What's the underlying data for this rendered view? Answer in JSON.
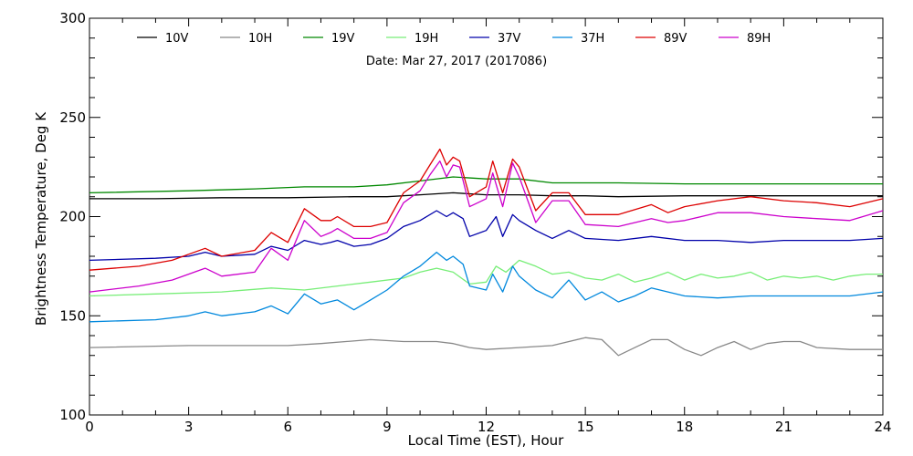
{
  "chart_data": {
    "type": "line",
    "date_text": "Date: Mar 27, 2017 (2017086)",
    "xlabel": "Local Time (EST), Hour",
    "ylabel": "Brightness Temperature, Deg K",
    "xlim": [
      0,
      24
    ],
    "ylim": [
      100,
      300
    ],
    "xticks": [
      0,
      3,
      6,
      9,
      12,
      15,
      18,
      21,
      24
    ],
    "yticks": [
      100,
      150,
      200,
      250,
      300
    ],
    "grid": false,
    "legend_placement": "top",
    "series": [
      {
        "name": "10V",
        "color": "#000000",
        "x": [
          0,
          2,
          4,
          6,
          8,
          9,
          10,
          11,
          12,
          13,
          14,
          15,
          16,
          18,
          20,
          22,
          24
        ],
        "y": [
          209,
          209,
          209.5,
          209.5,
          210,
          210,
          211,
          212,
          211,
          211,
          210.5,
          210.5,
          210,
          210.5,
          210.5,
          210.5,
          210.5
        ]
      },
      {
        "name": "10H",
        "color": "#888888",
        "x": [
          0,
          3,
          6,
          7,
          8.5,
          9.5,
          10.5,
          11,
          11.5,
          12,
          13,
          14,
          15,
          15.5,
          16,
          16.5,
          17,
          17.5,
          18,
          18.5,
          19,
          19.5,
          20,
          20.5,
          21,
          21.5,
          22,
          23,
          24
        ],
        "y": [
          134,
          135,
          135,
          136,
          138,
          137,
          137,
          136,
          134,
          133,
          134,
          135,
          139,
          138,
          130,
          134,
          138,
          138,
          133,
          130,
          134,
          137,
          133,
          136,
          137,
          137,
          134,
          133,
          133
        ]
      },
      {
        "name": "19V",
        "color": "#008800",
        "x": [
          0,
          3,
          5,
          6.5,
          8,
          9,
          10,
          11,
          12,
          13,
          14,
          16,
          18,
          20,
          22,
          24
        ],
        "y": [
          212,
          213,
          214,
          215,
          215,
          216,
          218,
          220,
          219,
          219,
          217,
          217,
          216.5,
          216.5,
          216.5,
          216.5
        ]
      },
      {
        "name": "19H",
        "color": "#77ee77",
        "x": [
          0,
          2,
          4,
          5.5,
          6.5,
          7.5,
          8.5,
          9.5,
          10,
          10.5,
          11,
          11.5,
          12,
          12.3,
          12.6,
          13,
          13.5,
          14,
          14.5,
          15,
          15.5,
          16,
          16.5,
          17,
          17.5,
          18,
          18.5,
          19,
          19.5,
          20,
          20.5,
          21,
          21.5,
          22,
          22.5,
          23,
          23.5,
          24
        ],
        "y": [
          160,
          161,
          162,
          164,
          163,
          165,
          167,
          169,
          172,
          174,
          172,
          166,
          167,
          175,
          172,
          178,
          175,
          171,
          172,
          169,
          168,
          171,
          167,
          169,
          172,
          168,
          171,
          169,
          170,
          172,
          168,
          170,
          169,
          170,
          168,
          170,
          171,
          171
        ]
      },
      {
        "name": "37V",
        "color": "#0000aa",
        "x": [
          0,
          2,
          3,
          3.5,
          4,
          5,
          5.5,
          6,
          6.5,
          7,
          7.3,
          7.5,
          8,
          8.5,
          9,
          9.5,
          10,
          10.5,
          10.8,
          11,
          11.3,
          11.5,
          12,
          12.3,
          12.5,
          12.8,
          13,
          13.5,
          14,
          14.5,
          15,
          16,
          17,
          18,
          19,
          20,
          21,
          22,
          23,
          24
        ],
        "y": [
          178,
          179,
          180,
          182,
          180,
          181,
          185,
          183,
          188,
          186,
          187,
          188,
          185,
          186,
          189,
          195,
          198,
          203,
          200,
          202,
          199,
          190,
          193,
          200,
          190,
          201,
          198,
          193,
          189,
          193,
          189,
          188,
          190,
          188,
          188,
          187,
          188,
          188,
          188,
          189
        ]
      },
      {
        "name": "37H",
        "color": "#0088dd",
        "x": [
          0,
          2,
          3,
          3.5,
          4,
          5,
          5.5,
          6,
          6.5,
          7,
          7.5,
          8,
          8.5,
          9,
          9.5,
          10,
          10.5,
          10.8,
          11,
          11.3,
          11.5,
          12,
          12.2,
          12.5,
          12.8,
          13,
          13.5,
          14,
          14.5,
          15,
          15.5,
          16,
          16.5,
          17,
          17.5,
          18,
          19,
          20,
          21,
          22,
          23,
          24
        ],
        "y": [
          147,
          148,
          150,
          152,
          150,
          152,
          155,
          151,
          161,
          156,
          158,
          153,
          158,
          163,
          170,
          175,
          182,
          178,
          180,
          176,
          165,
          163,
          171,
          162,
          175,
          170,
          163,
          159,
          168,
          158,
          162,
          157,
          160,
          164,
          162,
          160,
          159,
          160,
          160,
          160,
          160,
          162
        ]
      },
      {
        "name": "89V",
        "color": "#dd0000",
        "x": [
          0,
          1.5,
          2.5,
          3.5,
          4,
          5,
          5.5,
          6,
          6.5,
          7,
          7.3,
          7.5,
          8,
          8.5,
          9,
          9.5,
          10,
          10.3,
          10.6,
          10.8,
          11,
          11.2,
          11.5,
          12,
          12.2,
          12.5,
          12.8,
          13,
          13.5,
          14,
          14.5,
          15,
          16,
          17,
          17.5,
          18,
          19,
          20,
          21,
          22,
          23,
          24
        ],
        "y": [
          173,
          175,
          178,
          184,
          180,
          183,
          192,
          187,
          204,
          198,
          198,
          200,
          195,
          195,
          197,
          212,
          218,
          226,
          234,
          226,
          230,
          228,
          210,
          215,
          228,
          212,
          229,
          225,
          203,
          212,
          212,
          201,
          201,
          206,
          202,
          205,
          208,
          210,
          208,
          207,
          205,
          209
        ]
      },
      {
        "name": "89H",
        "color": "#cc00cc",
        "x": [
          0,
          1.5,
          2.5,
          3.5,
          4,
          5,
          5.5,
          6,
          6.5,
          7,
          7.3,
          7.5,
          8,
          8.5,
          9,
          9.5,
          10,
          10.3,
          10.6,
          10.8,
          11,
          11.2,
          11.5,
          12,
          12.2,
          12.5,
          12.8,
          13,
          13.5,
          14,
          14.5,
          15,
          16,
          17,
          17.5,
          18,
          19,
          20,
          21,
          22,
          23,
          24
        ],
        "y": [
          162,
          165,
          168,
          174,
          170,
          172,
          184,
          178,
          198,
          190,
          192,
          194,
          189,
          189,
          192,
          207,
          213,
          221,
          228,
          220,
          226,
          225,
          205,
          209,
          222,
          205,
          227,
          220,
          197,
          208,
          208,
          196,
          195,
          199,
          197,
          198,
          202,
          202,
          200,
          199,
          198,
          203
        ]
      }
    ]
  }
}
